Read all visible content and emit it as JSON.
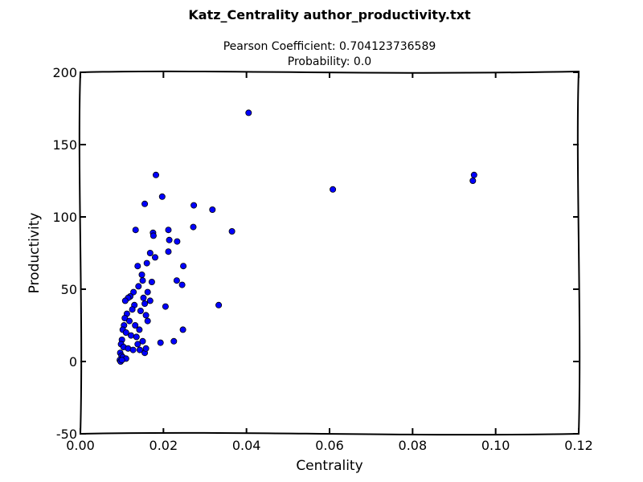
{
  "chart_data": {
    "type": "scatter",
    "title": "Katz_Centrality author_productivity.txt",
    "subtitle_lines": [
      "Pearson Coefficient: 0.704123736589",
      "Probability: 0.0"
    ],
    "xlabel": "Centrality",
    "ylabel": "Productivity",
    "xlim": [
      0.0,
      0.12
    ],
    "ylim": [
      -50,
      200
    ],
    "xticks": [
      0.0,
      0.02,
      0.04,
      0.06,
      0.08,
      0.1,
      0.12
    ],
    "xtick_labels": [
      "0.00",
      "0.02",
      "0.04",
      "0.06",
      "0.08",
      "0.10",
      "0.12"
    ],
    "yticks": [
      -50,
      0,
      50,
      100,
      150,
      200
    ],
    "ytick_labels": [
      "-50",
      "0",
      "50",
      "100",
      "150",
      "200"
    ],
    "grid": false,
    "marker_color": "#0000ff",
    "marker_edge_color": "#000000",
    "series": [
      {
        "points": [
          [
            0.0405,
            172
          ],
          [
            0.0948,
            129
          ],
          [
            0.0945,
            125
          ],
          [
            0.0608,
            119
          ],
          [
            0.0182,
            129
          ],
          [
            0.0197,
            114
          ],
          [
            0.0155,
            109
          ],
          [
            0.0273,
            108
          ],
          [
            0.0318,
            105
          ],
          [
            0.0365,
            90
          ],
          [
            0.0272,
            93
          ],
          [
            0.0212,
            91
          ],
          [
            0.0175,
            89
          ],
          [
            0.0176,
            87
          ],
          [
            0.0133,
            91
          ],
          [
            0.0214,
            84
          ],
          [
            0.0233,
            83
          ],
          [
            0.0212,
            76
          ],
          [
            0.0248,
            66
          ],
          [
            0.0232,
            56
          ],
          [
            0.0245,
            53
          ],
          [
            0.0333,
            39
          ],
          [
            0.0205,
            38
          ],
          [
            0.0247,
            22
          ],
          [
            0.0193,
            13
          ],
          [
            0.0225,
            14
          ],
          [
            0.0155,
            6
          ],
          [
            0.0158,
            9
          ],
          [
            0.0168,
            42
          ],
          [
            0.0138,
            66
          ],
          [
            0.016,
            68
          ],
          [
            0.0168,
            75
          ],
          [
            0.018,
            72
          ],
          [
            0.0148,
            60
          ],
          [
            0.0172,
            55
          ],
          [
            0.015,
            56
          ],
          [
            0.014,
            52
          ],
          [
            0.0128,
            48
          ],
          [
            0.012,
            45
          ],
          [
            0.0115,
            44
          ],
          [
            0.0108,
            42
          ],
          [
            0.013,
            39
          ],
          [
            0.0125,
            36
          ],
          [
            0.0112,
            33
          ],
          [
            0.0107,
            30
          ],
          [
            0.0118,
            28
          ],
          [
            0.0145,
            35
          ],
          [
            0.0158,
            32
          ],
          [
            0.0162,
            28
          ],
          [
            0.0105,
            25
          ],
          [
            0.0102,
            22
          ],
          [
            0.011,
            20
          ],
          [
            0.0122,
            18
          ],
          [
            0.0135,
            17
          ],
          [
            0.01,
            15
          ],
          [
            0.0098,
            12
          ],
          [
            0.0104,
            10
          ],
          [
            0.0115,
            9
          ],
          [
            0.0127,
            8
          ],
          [
            0.0096,
            6
          ],
          [
            0.0099,
            4
          ],
          [
            0.0102,
            3
          ],
          [
            0.011,
            2
          ],
          [
            0.0095,
            1
          ],
          [
            0.0097,
            0
          ],
          [
            0.01,
            1
          ],
          [
            0.0138,
            12
          ],
          [
            0.015,
            14
          ],
          [
            0.0143,
            8
          ],
          [
            0.0132,
            25
          ],
          [
            0.0142,
            22
          ],
          [
            0.0152,
            44
          ],
          [
            0.0162,
            48
          ],
          [
            0.0155,
            40
          ]
        ]
      }
    ]
  }
}
